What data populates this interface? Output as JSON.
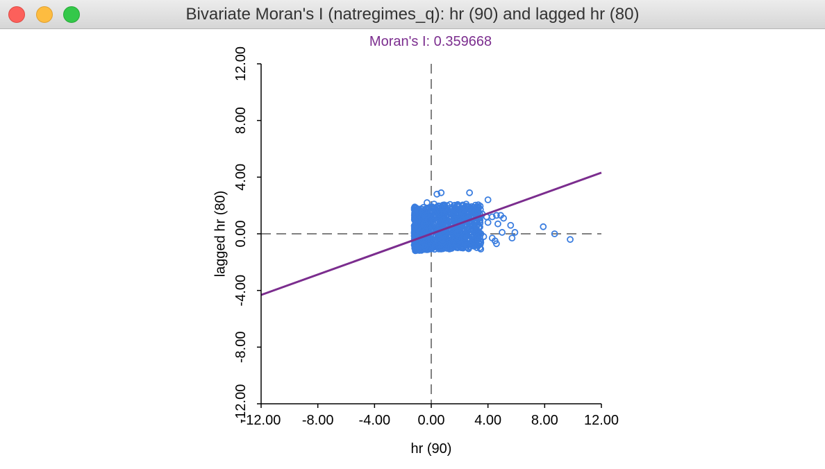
{
  "window": {
    "title": "Bivariate Moran's I (natregimes_q): hr (90) and lagged hr (80)"
  },
  "colors": {
    "points": "#3a7ddf",
    "regression_line": "#7b2d8e",
    "title": "#7b2d8e",
    "reference_lines": "#808080"
  },
  "chart_data": {
    "type": "scatter",
    "title": "Moran's I: 0.359668",
    "xlabel": "hr (90)",
    "ylabel": "lagged hr (80)",
    "xlim": [
      -12,
      12
    ],
    "ylim": [
      -12,
      12
    ],
    "x_ticks": [
      "-12.00",
      "-8.00",
      "-4.00",
      "0.00",
      "4.00",
      "8.00",
      "12.00"
    ],
    "y_ticks": [
      "-12.00",
      "-8.00",
      "-4.00",
      "0.00",
      "4.00",
      "8.00",
      "12.00"
    ],
    "reference_lines": {
      "x": 0,
      "y": 0,
      "style": "dashed"
    },
    "regression_line": {
      "slope": 0.359668,
      "intercept": 0
    },
    "cluster": {
      "x_range": [
        -1.2,
        3.5
      ],
      "y_range": [
        -1.1,
        2.0
      ]
    },
    "points": [
      {
        "x": 0.4,
        "y": 2.8
      },
      {
        "x": 0.7,
        "y": 2.9
      },
      {
        "x": 2.7,
        "y": 2.9
      },
      {
        "x": 4.0,
        "y": 2.4
      },
      {
        "x": -0.3,
        "y": 2.2
      },
      {
        "x": 0.2,
        "y": 2.1
      },
      {
        "x": 1.8,
        "y": 2.0
      },
      {
        "x": 3.3,
        "y": 1.6
      },
      {
        "x": 3.6,
        "y": 1.4
      },
      {
        "x": 3.9,
        "y": 1.2
      },
      {
        "x": 4.3,
        "y": 1.2
      },
      {
        "x": 4.6,
        "y": 1.3
      },
      {
        "x": 4.9,
        "y": 1.3
      },
      {
        "x": 5.1,
        "y": 1.1
      },
      {
        "x": 3.4,
        "y": 0.9
      },
      {
        "x": 4.0,
        "y": 0.8
      },
      {
        "x": 4.7,
        "y": 0.7
      },
      {
        "x": 5.6,
        "y": 0.6
      },
      {
        "x": 3.2,
        "y": 0.3
      },
      {
        "x": 5.0,
        "y": 0.1
      },
      {
        "x": 5.9,
        "y": 0.1
      },
      {
        "x": 3.5,
        "y": 0.0
      },
      {
        "x": 3.7,
        "y": -0.2
      },
      {
        "x": 3.3,
        "y": -0.4
      },
      {
        "x": 4.3,
        "y": -0.3
      },
      {
        "x": 4.5,
        "y": -0.5
      },
      {
        "x": 5.7,
        "y": -0.3
      },
      {
        "x": 4.6,
        "y": -0.7
      },
      {
        "x": 2.8,
        "y": -0.6
      },
      {
        "x": 2.5,
        "y": -0.8
      },
      {
        "x": 7.9,
        "y": 0.5
      },
      {
        "x": 8.7,
        "y": 0.0
      },
      {
        "x": 9.8,
        "y": -0.4
      }
    ]
  }
}
